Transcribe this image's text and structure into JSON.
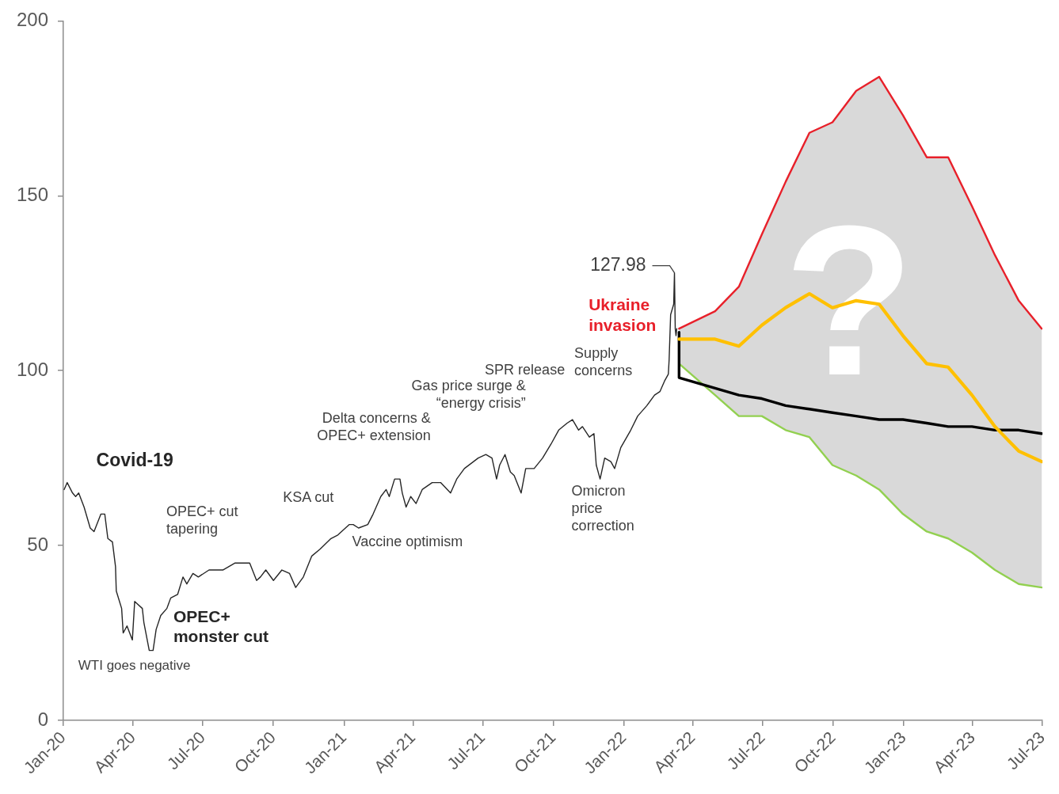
{
  "chart_data": {
    "type": "line",
    "x": [
      "2022-03-14",
      "2022-04-30",
      "2022-05-31",
      "2022-06-30",
      "2022-07-31",
      "2022-08-31",
      "2022-09-30",
      "2022-10-31",
      "2022-11-30",
      "2022-12-31",
      "2023-01-31",
      "2023-02-28",
      "2023-03-31",
      "2023-04-30",
      "2023-05-31",
      "2023-06-30"
    ],
    "xlim": [
      "2020-01-01",
      "2023-07-01"
    ],
    "xticks": [
      {
        "value": "2020-01-01",
        "label": "Jan-20"
      },
      {
        "value": "2020-04-01",
        "label": "Apr-20"
      },
      {
        "value": "2020-07-01",
        "label": "Jul-20"
      },
      {
        "value": "2020-10-01",
        "label": "Oct-20"
      },
      {
        "value": "2021-01-01",
        "label": "Jan-21"
      },
      {
        "value": "2021-04-01",
        "label": "Apr-21"
      },
      {
        "value": "2021-07-01",
        "label": "Jul-21"
      },
      {
        "value": "2021-10-01",
        "label": "Oct-21"
      },
      {
        "value": "2022-01-01",
        "label": "Jan-22"
      },
      {
        "value": "2022-04-01",
        "label": "Apr-22"
      },
      {
        "value": "2022-07-01",
        "label": "Jul-22"
      },
      {
        "value": "2022-10-01",
        "label": "Oct-22"
      },
      {
        "value": "2023-01-01",
        "label": "Jan-23"
      },
      {
        "value": "2023-04-01",
        "label": "Apr-23"
      },
      {
        "value": "2023-07-01",
        "label": "Jul-23"
      }
    ],
    "ylim": [
      0,
      200
    ],
    "yticks": [
      0,
      50,
      100,
      150,
      200
    ],
    "grid": false,
    "marker": "none",
    "series": [
      {
        "color": "#e8202a",
        "values": [
          112,
          117,
          124,
          139,
          154,
          168,
          171,
          180,
          184,
          173,
          161,
          161,
          147,
          133,
          120,
          112
        ]
      },
      {
        "color": "#92d050",
        "values": [
          102,
          93,
          87,
          87,
          83,
          81,
          73,
          70,
          66,
          59,
          54,
          52,
          48,
          43,
          39,
          38
        ]
      },
      {
        "color": "#262626",
        "x": [
          "2020-01-02",
          "2020-01-06",
          "2020-01-13",
          "2020-01-17",
          "2020-01-21",
          "2020-01-28",
          "2020-02-05",
          "2020-02-10",
          "2020-02-19",
          "2020-02-24",
          "2020-02-28",
          "2020-03-05",
          "2020-03-09",
          "2020-03-10",
          "2020-03-17",
          "2020-03-19",
          "2020-03-24",
          "2020-03-31",
          "2020-04-03",
          "2020-04-13",
          "2020-04-15",
          "2020-04-22",
          "2020-04-27",
          "2020-05-01",
          "2020-05-07",
          "2020-05-15",
          "2020-05-20",
          "2020-05-29",
          "2020-06-05",
          "2020-06-10",
          "2020-06-18",
          "2020-06-25",
          "2020-07-09",
          "2020-07-27",
          "2020-08-12",
          "2020-08-24",
          "2020-08-31",
          "2020-09-09",
          "2020-09-14",
          "2020-09-21",
          "2020-10-01",
          "2020-10-12",
          "2020-10-22",
          "2020-10-30",
          "2020-11-09",
          "2020-11-20",
          "2020-12-01",
          "2020-12-15",
          "2020-12-24",
          "2021-01-08",
          "2021-01-13",
          "2021-01-20",
          "2021-02-01",
          "2021-02-08",
          "2021-02-18",
          "2021-02-25",
          "2021-03-01",
          "2021-03-08",
          "2021-03-15",
          "2021-03-18",
          "2021-03-23",
          "2021-03-29",
          "2021-04-05",
          "2021-04-13",
          "2021-04-26",
          "2021-05-07",
          "2021-05-20",
          "2021-05-28",
          "2021-06-07",
          "2021-06-25",
          "2021-07-05",
          "2021-07-13",
          "2021-07-19",
          "2021-07-23",
          "2021-07-30",
          "2021-08-06",
          "2021-08-11",
          "2021-08-20",
          "2021-08-26",
          "2021-09-06",
          "2021-09-17",
          "2021-09-28",
          "2021-10-08",
          "2021-10-19",
          "2021-10-26",
          "2021-11-03",
          "2021-11-08",
          "2021-11-17",
          "2021-11-23",
          "2021-11-26",
          "2021-12-01",
          "2021-12-07",
          "2021-12-15",
          "2021-12-20",
          "2021-12-28",
          "2022-01-10",
          "2022-01-19",
          "2022-01-31",
          "2022-02-10",
          "2022-02-17",
          "2022-02-23",
          "2022-02-28",
          "2022-03-01",
          "2022-03-03",
          "2022-03-07",
          "2022-03-08",
          "2022-03-09",
          "2022-03-10",
          "2022-03-11"
        ],
        "values": [
          66,
          68,
          65,
          64,
          65,
          61,
          55,
          54,
          59,
          59,
          52,
          51,
          44,
          37,
          32,
          25,
          27,
          23,
          34,
          32,
          28,
          20,
          20,
          26,
          30,
          32,
          35,
          36,
          41,
          39,
          42,
          41,
          43,
          43,
          45,
          45,
          45,
          40,
          41,
          43,
          40,
          43,
          42,
          38,
          41,
          47,
          49,
          52,
          53,
          56,
          56,
          55,
          56,
          59,
          64,
          66,
          64,
          69,
          69,
          65,
          61,
          64,
          62,
          66,
          68,
          68,
          65,
          69,
          72,
          75,
          76,
          75,
          69,
          73,
          76,
          71,
          70,
          65,
          72,
          72,
          75,
          79,
          83,
          85,
          86,
          83,
          84,
          81,
          82,
          73,
          69,
          75,
          74,
          72,
          78,
          83,
          87,
          90,
          93,
          94,
          97,
          99,
          103,
          116,
          119,
          127.98,
          112,
          110,
          112
        ]
      },
      {
        "color": "#000000",
        "x": [
          "2022-03-14",
          "2022-03-14",
          "2022-04-30",
          "2022-05-31",
          "2022-06-30",
          "2022-07-31",
          "2022-08-31",
          "2022-09-30",
          "2022-10-31",
          "2022-11-30",
          "2022-12-31",
          "2023-01-31",
          "2023-02-28",
          "2023-03-31",
          "2023-04-30",
          "2023-05-31",
          "2023-06-30"
        ],
        "values": [
          111,
          98,
          95,
          93,
          92,
          90,
          89,
          88,
          87,
          86,
          86,
          85,
          84,
          84,
          83,
          83,
          82
        ]
      },
      {
        "color": "#ffc000",
        "values": [
          109,
          109,
          107,
          113,
          118,
          122,
          118,
          120,
          119,
          110,
          102,
          101,
          93,
          84,
          77,
          74
        ],
        "lower": [
          102,
          93,
          87,
          87,
          83,
          81,
          73,
          70,
          66,
          59,
          54,
          52,
          48,
          43,
          39,
          38
        ],
        "upper": [
          112,
          117,
          124,
          139,
          154,
          168,
          171,
          180,
          184,
          173,
          161,
          161,
          147,
          133,
          120,
          112
        ]
      }
    ],
    "annotations": [
      "Covid-19",
      "WTI goes negative",
      "OPEC+ monster cut",
      "OPEC+ cut tapering",
      "KSA cut",
      "Vaccine optimism",
      "Delta concerns & OPEC+ extension",
      "Gas price surge & “energy crisis”",
      "SPR release",
      "Supply concerns",
      "Omicron price correction",
      "Ukraine invasion",
      {
        "text": "127.98",
        "x": "2022-03-08",
        "y": 127.98
      },
      "?"
    ]
  }
}
